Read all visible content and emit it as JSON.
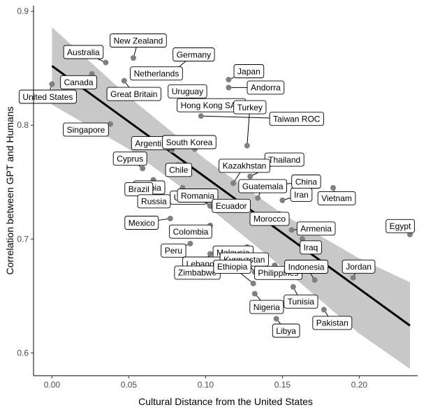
{
  "chart_data": {
    "type": "scatter",
    "xlabel": "Cultural Distance from the United States",
    "ylabel": "Correlation between GPT and Humans",
    "xlim": [
      -0.012,
      0.238
    ],
    "ylim": [
      0.58,
      0.905
    ],
    "xticks": [
      "0.00",
      "0.05",
      "0.10",
      "0.15",
      "0.20"
    ],
    "yticks": [
      "0.6",
      "0.7",
      "0.8",
      "0.9"
    ],
    "grid": false,
    "colors": {
      "point": "#808080",
      "line": "#000000",
      "band": "#c8c8c8"
    },
    "fit": {
      "x": [
        0.0,
        0.233
      ],
      "y": [
        0.852,
        0.624
      ]
    },
    "band": {
      "x": [
        0.0,
        0.05,
        0.1,
        0.15,
        0.2,
        0.233
      ],
      "upper": [
        0.886,
        0.825,
        0.77,
        0.722,
        0.683,
        0.662
      ],
      "lower": [
        0.818,
        0.779,
        0.73,
        0.675,
        0.617,
        0.586
      ]
    },
    "points": [
      {
        "name": "Australia",
        "x": 0.035,
        "y": 0.855
      },
      {
        "name": "New Zealand",
        "x": 0.053,
        "y": 0.859
      },
      {
        "name": "Germany",
        "x": 0.08,
        "y": 0.848
      },
      {
        "name": "Netherlands",
        "x": 0.078,
        "y": 0.846
      },
      {
        "name": "Canada",
        "x": 0.026,
        "y": 0.845
      },
      {
        "name": "Great Britain",
        "x": 0.047,
        "y": 0.839
      },
      {
        "name": "United States",
        "x": 0.0,
        "y": 0.836
      },
      {
        "name": "Japan",
        "x": 0.115,
        "y": 0.84
      },
      {
        "name": "Andorra",
        "x": 0.115,
        "y": 0.833
      },
      {
        "name": "Uruguay",
        "x": 0.085,
        "y": 0.826
      },
      {
        "name": "Hong Kong SAR",
        "x": 0.091,
        "y": 0.823
      },
      {
        "name": "Taiwan ROC",
        "x": 0.097,
        "y": 0.808
      },
      {
        "name": "Singapore",
        "x": 0.038,
        "y": 0.801
      },
      {
        "name": "Argentina",
        "x": 0.078,
        "y": 0.778
      },
      {
        "name": "South Korea",
        "x": 0.093,
        "y": 0.779
      },
      {
        "name": "Turkey",
        "x": 0.127,
        "y": 0.782
      },
      {
        "name": "Thailand",
        "x": 0.129,
        "y": 0.755
      },
      {
        "name": "Kazakhstan",
        "x": 0.118,
        "y": 0.749
      },
      {
        "name": "Cyprus",
        "x": 0.059,
        "y": 0.762
      },
      {
        "name": "Chile",
        "x": 0.082,
        "y": 0.765
      },
      {
        "name": "Serbia",
        "x": 0.066,
        "y": 0.752
      },
      {
        "name": "Brazil",
        "x": 0.072,
        "y": 0.745
      },
      {
        "name": "China",
        "x": 0.15,
        "y": 0.748
      },
      {
        "name": "Vietnam",
        "x": 0.183,
        "y": 0.745
      },
      {
        "name": "Ukraine",
        "x": 0.085,
        "y": 0.745
      },
      {
        "name": "Russia",
        "x": 0.085,
        "y": 0.738
      },
      {
        "name": "Guatemala",
        "x": 0.134,
        "y": 0.736
      },
      {
        "name": "Iran",
        "x": 0.15,
        "y": 0.734
      },
      {
        "name": "Romania",
        "x": 0.103,
        "y": 0.729
      },
      {
        "name": "Ecuador",
        "x": 0.109,
        "y": 0.731
      },
      {
        "name": "Morocco",
        "x": 0.148,
        "y": 0.722
      },
      {
        "name": "Mexico",
        "x": 0.077,
        "y": 0.718
      },
      {
        "name": "Armenia",
        "x": 0.156,
        "y": 0.708
      },
      {
        "name": "Colombia",
        "x": 0.103,
        "y": 0.712
      },
      {
        "name": "Egypt",
        "x": 0.233,
        "y": 0.704
      },
      {
        "name": "Malaysia",
        "x": 0.127,
        "y": 0.693
      },
      {
        "name": "Iraq",
        "x": 0.163,
        "y": 0.7
      },
      {
        "name": "Peru",
        "x": 0.09,
        "y": 0.696
      },
      {
        "name": "Lebanon",
        "x": 0.103,
        "y": 0.687
      },
      {
        "name": "Philippines",
        "x": 0.145,
        "y": 0.677
      },
      {
        "name": "Kyrgyzstan",
        "x": 0.132,
        "y": 0.671
      },
      {
        "name": "Zimbabwe",
        "x": 0.111,
        "y": 0.676
      },
      {
        "name": "Jordan",
        "x": 0.196,
        "y": 0.666
      },
      {
        "name": "Indonesia",
        "x": 0.171,
        "y": 0.664
      },
      {
        "name": "Ethiopia",
        "x": 0.131,
        "y": 0.661
      },
      {
        "name": "Tunisia",
        "x": 0.157,
        "y": 0.658
      },
      {
        "name": "Nigeria",
        "x": 0.132,
        "y": 0.652
      },
      {
        "name": "Pakistan",
        "x": 0.177,
        "y": 0.638
      },
      {
        "name": "Libya",
        "x": 0.146,
        "y": 0.63
      }
    ]
  }
}
